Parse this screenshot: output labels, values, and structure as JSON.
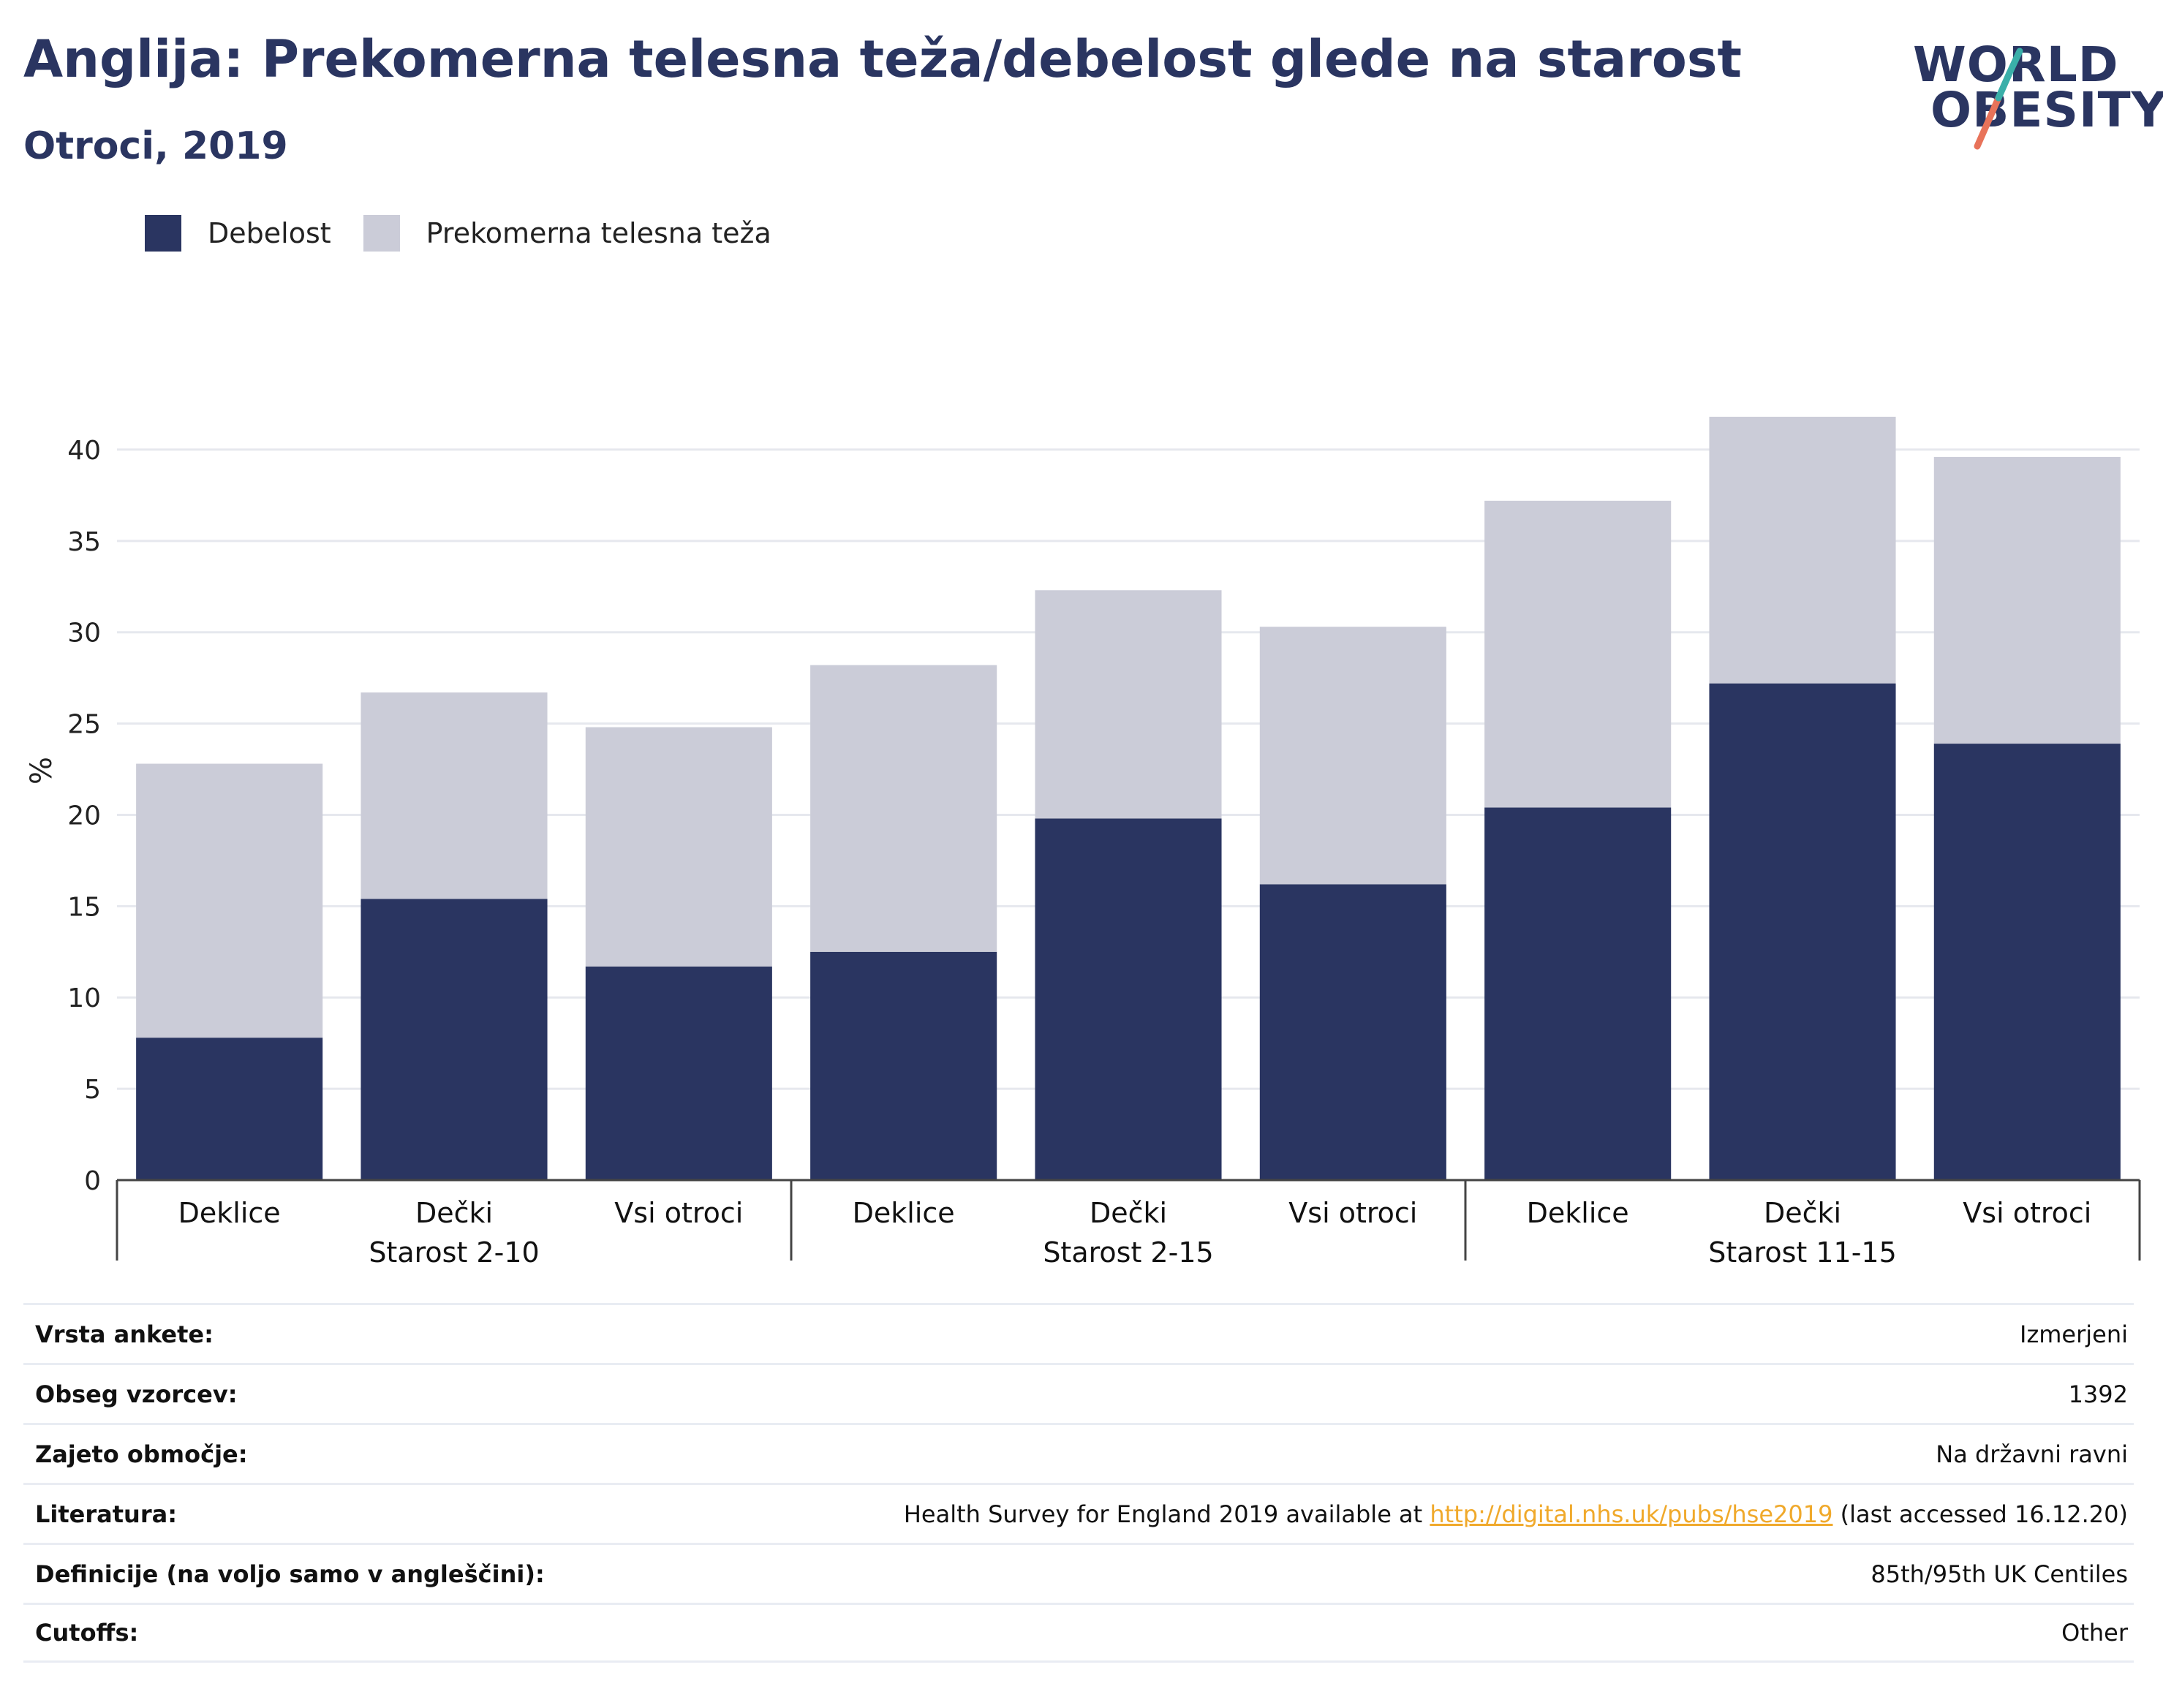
{
  "header": {
    "title": "Anglija: Prekomerna telesna teža/debelost glede na starost",
    "subtitle": "Otroci, 2019"
  },
  "logo": {
    "line1": "WORLD",
    "line2": "OBESITY"
  },
  "legend": [
    {
      "label": "Debelost",
      "color": "#2a3561"
    },
    {
      "label": "Prekomerna telesna teža",
      "color": "#cbccd8"
    }
  ],
  "chart_data": {
    "type": "bar",
    "stacked": true,
    "ylabel": "%",
    "ylim": [
      0,
      43
    ],
    "yticks": [
      0,
      5,
      10,
      15,
      20,
      25,
      30,
      35,
      40
    ],
    "grid": true,
    "legend_position": "top-left",
    "categories": [
      "Deklice",
      "Dečki",
      "Vsi otroci",
      "Deklice",
      "Dečki",
      "Vsi otroci",
      "Deklice",
      "Dečki",
      "Vsi otroci"
    ],
    "groups": [
      {
        "label": "Starost 2-10",
        "count": 3
      },
      {
        "label": "Starost 2-15",
        "count": 3
      },
      {
        "label": "Starost 11-15",
        "count": 3
      }
    ],
    "series": [
      {
        "name": "Debelost",
        "color": "#2a3561",
        "values": [
          7.8,
          15.4,
          11.7,
          12.5,
          19.8,
          16.2,
          20.4,
          27.2,
          23.9
        ]
      },
      {
        "name": "Prekomerna telesna teža",
        "color": "#cbccd8",
        "values": [
          15.0,
          11.3,
          13.1,
          15.7,
          12.5,
          14.1,
          16.8,
          14.6,
          15.7
        ]
      }
    ]
  },
  "meta": [
    {
      "key": "Vrsta ankete:",
      "value": "Izmerjeni"
    },
    {
      "key": "Obseg vzorcev:",
      "value": "1392"
    },
    {
      "key": "Zajeto območje:",
      "value": "Na državni ravni"
    },
    {
      "key": "Literatura:",
      "value_pre": "Health Survey for England 2019 available at ",
      "link": "http://digital.nhs.uk/pubs/hse2019",
      "value_post": " (last accessed 16.12.20)"
    },
    {
      "key": "Definicije (na voljo samo v angleščini):",
      "value": "85th/95th UK Centiles"
    },
    {
      "key": "Cutoffs:",
      "value": "Other"
    }
  ]
}
